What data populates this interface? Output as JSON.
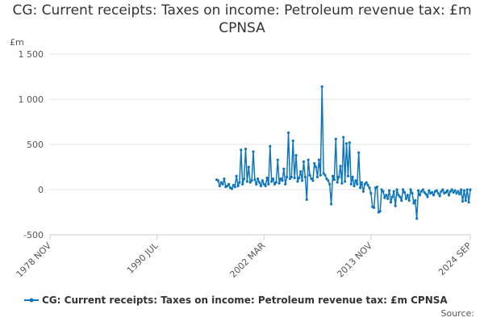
{
  "chart_data": {
    "type": "line",
    "title": "CG: Current receipts: Taxes on income: Petroleum revenue tax: £m CPNSA",
    "y_unit": "£m",
    "source": "Source:",
    "categories": [
      "1978 NOV",
      null,
      null,
      null,
      null,
      null,
      null,
      null,
      null,
      null,
      null,
      null,
      null,
      null,
      null,
      null,
      null,
      null,
      null,
      null,
      null,
      null,
      null,
      null,
      null,
      null,
      null,
      null,
      null,
      null,
      null,
      null,
      null,
      null,
      null,
      null,
      null,
      null,
      null,
      null,
      null,
      null,
      null,
      null,
      null,
      null,
      null,
      null,
      null,
      null,
      null,
      null,
      null,
      null,
      null,
      null,
      null,
      null,
      null,
      null,
      null,
      null,
      null,
      null,
      null,
      null,
      null,
      null,
      null,
      null,
      "1990 JUL",
      null,
      null,
      null,
      null,
      null,
      null,
      null,
      null,
      null,
      null,
      null,
      null,
      null,
      null,
      null,
      null,
      null,
      null,
      null,
      null,
      null,
      null,
      null,
      null,
      null,
      null,
      null,
      null,
      null,
      null,
      null,
      null,
      null,
      null,
      null,
      null,
      null,
      null,
      null,
      null,
      null,
      null,
      null,
      null,
      null,
      null,
      null,
      null,
      null,
      null,
      null,
      null,
      null,
      null,
      null,
      null,
      null,
      null,
      null,
      null,
      null,
      null,
      null,
      null,
      null,
      null,
      null,
      null,
      null,
      "2002 MAR",
      null,
      null,
      null,
      null,
      null,
      null,
      null,
      null,
      null,
      null,
      null,
      null,
      null,
      null,
      null,
      null,
      null,
      null,
      null,
      null,
      null,
      null,
      null,
      null,
      null,
      null,
      null,
      null,
      null,
      null,
      null,
      null,
      null,
      null,
      null,
      null,
      null,
      null,
      null,
      null,
      null,
      null,
      null,
      null,
      null,
      null,
      null,
      null,
      null,
      null,
      null,
      null,
      null,
      null,
      null,
      null,
      null,
      null,
      null,
      null,
      null,
      null,
      null,
      null,
      null,
      null,
      null,
      null,
      null,
      "2013 NOV",
      null,
      null,
      null,
      null,
      null,
      null,
      null,
      null,
      null,
      null,
      null,
      null,
      null,
      null,
      null,
      null,
      null,
      null,
      null,
      null,
      null,
      null,
      null,
      null,
      null,
      null,
      null,
      null,
      null,
      null,
      null,
      null,
      null,
      null,
      null,
      null,
      null,
      null,
      null,
      null,
      null,
      null,
      null,
      null,
      null,
      null,
      null,
      null,
      null,
      null,
      null,
      null,
      null,
      null,
      null,
      null,
      null,
      null,
      null,
      null,
      null,
      null,
      null,
      null,
      "2024 SEP"
    ],
    "series": [
      {
        "name": "CG: Current receipts: Taxes on income: Petroleum revenue tax: £m CPNSA",
        "color": "#0f76bb",
        "values": [
          null,
          null,
          null,
          null,
          null,
          null,
          null,
          null,
          null,
          null,
          null,
          null,
          null,
          null,
          null,
          null,
          null,
          null,
          null,
          null,
          null,
          null,
          null,
          null,
          null,
          null,
          null,
          null,
          null,
          null,
          null,
          null,
          null,
          null,
          null,
          null,
          null,
          null,
          null,
          null,
          null,
          null,
          null,
          null,
          null,
          null,
          null,
          null,
          null,
          null,
          null,
          null,
          null,
          null,
          null,
          null,
          null,
          null,
          null,
          null,
          null,
          null,
          null,
          null,
          null,
          null,
          null,
          null,
          null,
          null,
          null,
          null,
          null,
          null,
          null,
          null,
          null,
          null,
          null,
          null,
          null,
          null,
          null,
          null,
          null,
          null,
          null,
          null,
          null,
          null,
          null,
          null,
          null,
          null,
          null,
          null,
          null,
          null,
          null,
          null,
          null,
          null,
          null,
          null,
          null,
          null,
          null,
          null,
          null,
          110,
          100,
          40,
          80,
          60,
          120,
          30,
          40,
          60,
          20,
          10,
          50,
          30,
          150,
          40,
          80,
          440,
          60,
          120,
          450,
          90,
          250,
          80,
          100,
          420,
          110,
          60,
          120,
          80,
          40,
          100,
          60,
          40,
          130,
          60,
          480,
          90,
          120,
          60,
          80,
          330,
          70,
          120,
          100,
          230,
          60,
          140,
          630,
          120,
          140,
          540,
          130,
          380,
          90,
          130,
          200,
          100,
          310,
          140,
          -110,
          330,
          160,
          120,
          100,
          290,
          250,
          140,
          330,
          160,
          1140,
          180,
          160,
          120,
          100,
          60,
          -160,
          150,
          110,
          560,
          80,
          140,
          260,
          70,
          580,
          90,
          510,
          150,
          520,
          60,
          140,
          40,
          100,
          60,
          410,
          20,
          80,
          -20,
          60,
          80,
          50,
          20,
          -40,
          -190,
          -200,
          20,
          30,
          -250,
          -240,
          0,
          -20,
          -90,
          -60,
          -100,
          -10,
          -140,
          -80,
          -20,
          -180,
          0,
          -60,
          -80,
          -120,
          0,
          -30,
          -100,
          -60,
          -120,
          0,
          -40,
          -150,
          -120,
          -320,
          -10,
          -60,
          -20,
          0,
          -30,
          -50,
          -80,
          -10,
          -40,
          -30,
          -60,
          -20,
          -10,
          -40,
          -70,
          -20,
          0,
          -40,
          -30,
          -10,
          -60,
          -20,
          0,
          -30,
          -10,
          -40,
          -20,
          -50,
          0,
          -130,
          -10,
          -120,
          0,
          -140,
          0
        ]
      }
    ],
    "ylim": [
      -500,
      1500
    ],
    "yticks": [
      -500,
      0,
      500,
      {
        "value": 1000,
        "label": "1 000"
      },
      {
        "value": 1500,
        "label": "1 500"
      }
    ],
    "grid": true,
    "legend": "bottom"
  }
}
